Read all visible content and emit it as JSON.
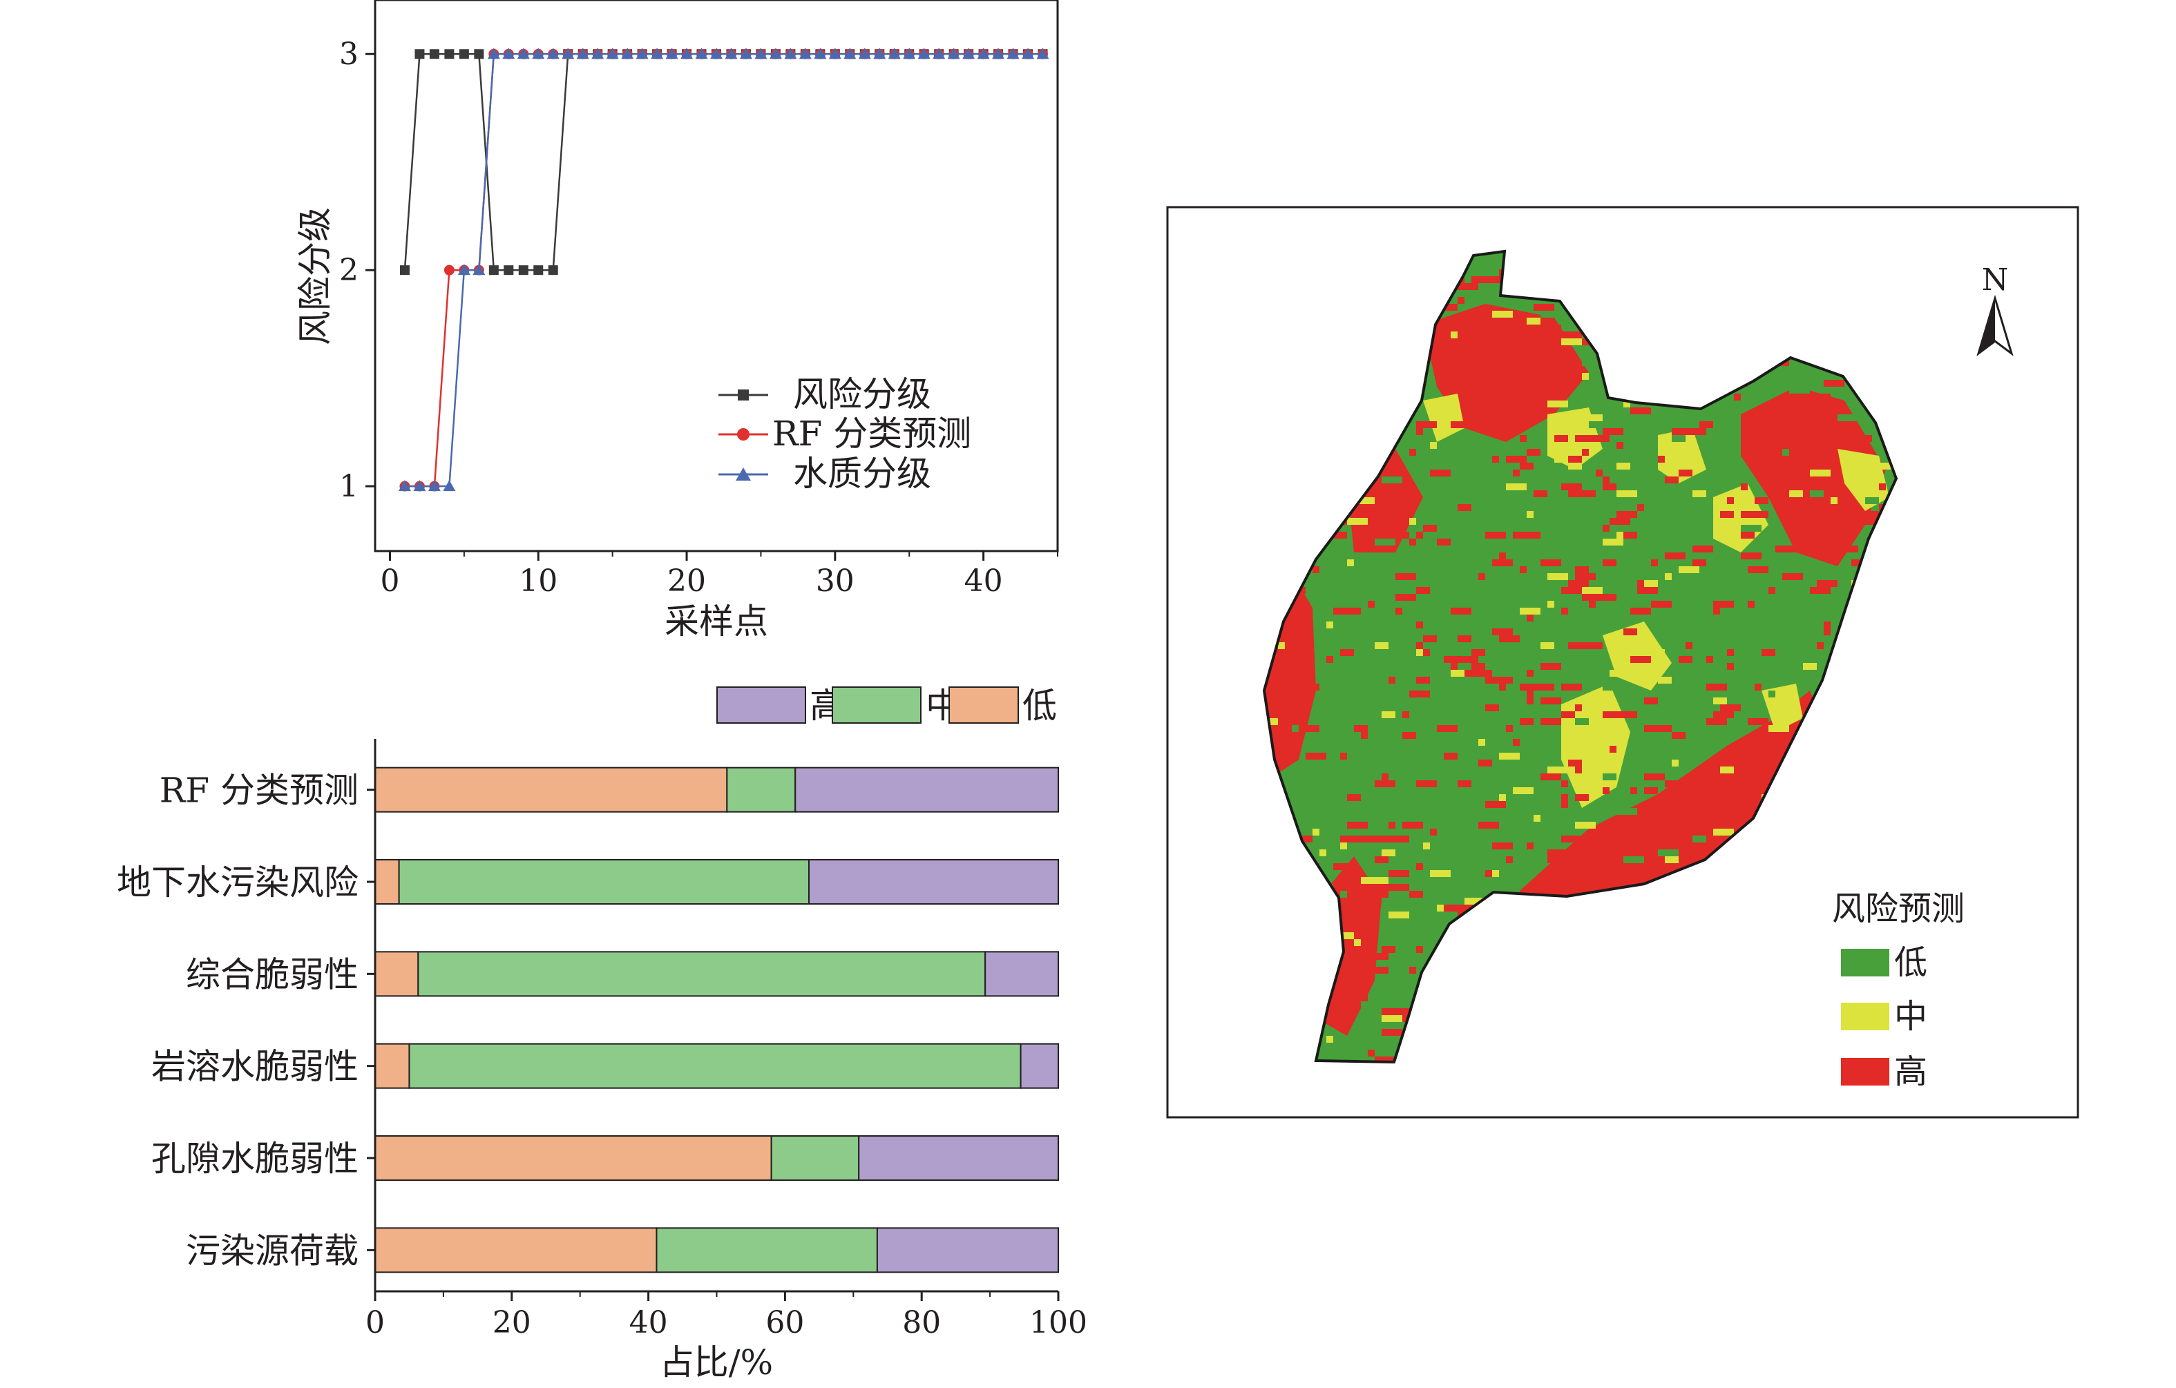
{
  "chart_data": [
    {
      "type": "line",
      "xlabel": "采样点",
      "ylabel": "风险分级",
      "xlim": [
        -1,
        45
      ],
      "ylim": [
        0.7,
        3.25
      ],
      "xticks": [
        0,
        10,
        20,
        30,
        40
      ],
      "yticks": [
        1,
        2,
        3
      ],
      "legend_position": "center-right",
      "series": [
        {
          "name": "风险分级",
          "color": "#3a3a3a",
          "marker": "square",
          "x": [
            1,
            2,
            3,
            4,
            5,
            6,
            7,
            8,
            9,
            10,
            11,
            12,
            13,
            14,
            15,
            16,
            17,
            18,
            19,
            20,
            21,
            22,
            23,
            24,
            25,
            26,
            27,
            28,
            29,
            30,
            31,
            32,
            33,
            34,
            35,
            36,
            37,
            38,
            39,
            40,
            41,
            42,
            43,
            44
          ],
          "values": [
            2,
            3,
            3,
            3,
            3,
            3,
            2,
            2,
            2,
            2,
            2,
            3,
            3,
            3,
            3,
            3,
            3,
            3,
            3,
            3,
            3,
            3,
            3,
            3,
            3,
            3,
            3,
            3,
            3,
            3,
            3,
            3,
            3,
            3,
            3,
            3,
            3,
            3,
            3,
            3,
            3,
            3,
            3,
            3
          ]
        },
        {
          "name": "RF 分类预测",
          "color": "#e0312f",
          "marker": "circle",
          "x": [
            1,
            2,
            3,
            4,
            5,
            6,
            7,
            8,
            9,
            10,
            11,
            12,
            13,
            14,
            15,
            16,
            17,
            18,
            19,
            20,
            21,
            22,
            23,
            24,
            25,
            26,
            27,
            28,
            29,
            30,
            31,
            32,
            33,
            34,
            35,
            36,
            37,
            38,
            39,
            40,
            41,
            42,
            43,
            44
          ],
          "values": [
            1,
            1,
            1,
            2,
            2,
            2,
            3,
            3,
            3,
            3,
            3,
            3,
            3,
            3,
            3,
            3,
            3,
            3,
            3,
            3,
            3,
            3,
            3,
            3,
            3,
            3,
            3,
            3,
            3,
            3,
            3,
            3,
            3,
            3,
            3,
            3,
            3,
            3,
            3,
            3,
            3,
            3,
            3,
            3
          ]
        },
        {
          "name": "水质分级",
          "color": "#4a69ae",
          "marker": "triangle",
          "x": [
            1,
            2,
            3,
            4,
            5,
            6,
            7,
            8,
            9,
            10,
            11,
            12,
            13,
            14,
            15,
            16,
            17,
            18,
            19,
            20,
            21,
            22,
            23,
            24,
            25,
            26,
            27,
            28,
            29,
            30,
            31,
            32,
            33,
            34,
            35,
            36,
            37,
            38,
            39,
            40,
            41,
            42,
            43,
            44
          ],
          "values": [
            1,
            1,
            1,
            1,
            2,
            2,
            3,
            3,
            3,
            3,
            3,
            3,
            3,
            3,
            3,
            3,
            3,
            3,
            3,
            3,
            3,
            3,
            3,
            3,
            3,
            3,
            3,
            3,
            3,
            3,
            3,
            3,
            3,
            3,
            3,
            3,
            3,
            3,
            3,
            3,
            3,
            3,
            3,
            3
          ]
        }
      ]
    },
    {
      "type": "bar",
      "orientation": "horizontal",
      "stacked": true,
      "xlabel": "占比/%",
      "xlim": [
        0,
        100
      ],
      "xticks": [
        0,
        20,
        40,
        60,
        80,
        100
      ],
      "legend_position": "top-right",
      "legend_order": [
        "高",
        "中",
        "低"
      ],
      "categories": [
        "RF 分类预测",
        "地下水污染风险",
        "综合脆弱性",
        "岩溶水脆弱性",
        "孔隙水脆弱性",
        "污染源荷载"
      ],
      "series": [
        {
          "name": "低",
          "color": "#f0b088",
          "values": [
            51.5,
            3.5,
            6.3,
            5.0,
            58.0,
            41.2
          ]
        },
        {
          "name": "中",
          "color": "#8ccb8a",
          "values": [
            10.0,
            60.0,
            83.0,
            89.5,
            12.8,
            32.3
          ]
        },
        {
          "name": "高",
          "color": "#b09fcc",
          "values": [
            38.5,
            36.5,
            10.7,
            5.5,
            29.2,
            26.5
          ]
        }
      ]
    }
  ],
  "map": {
    "north_label": "N",
    "legend_title": "风险预测",
    "legend_items": [
      {
        "label": "低",
        "color": "#47a03a"
      },
      {
        "label": "中",
        "color": "#dbe33c"
      },
      {
        "label": "高",
        "color": "#e22a27"
      }
    ]
  }
}
